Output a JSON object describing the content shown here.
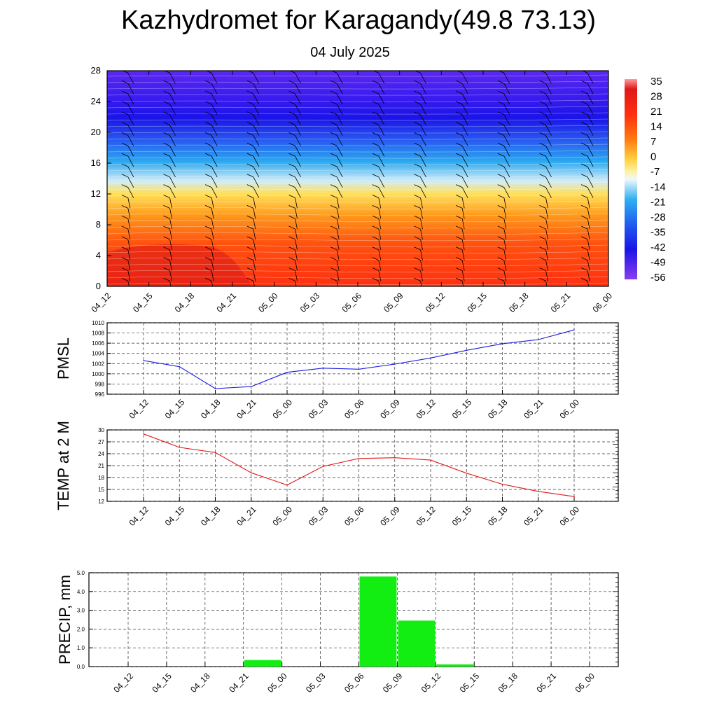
{
  "header": {
    "title": "Kazhydromet for Karagandy(49.8 73.13)",
    "subtitle": "04 July 2025"
  },
  "chart_data": [
    {
      "type": "heatmap",
      "name": "cross-section",
      "x_ticks": [
        "04_12",
        "04_15",
        "04_18",
        "04_21",
        "05_00",
        "05_03",
        "05_06",
        "05_09",
        "05_12",
        "05_15",
        "05_18",
        "05_21",
        "06_00"
      ],
      "y_ticks": [
        0,
        4,
        8,
        12,
        16,
        20,
        24,
        28
      ],
      "ylim": [
        0,
        28
      ],
      "colorbar_labels": [
        "35",
        "28",
        "21",
        "14",
        "7",
        "0",
        "-7",
        "-14",
        "-21",
        "-28",
        "-35",
        "-42",
        "-49",
        "-56"
      ],
      "colors": {
        "top": "#4a1ff0",
        "blue_band": "#1a14e8",
        "cyan": "#2aa8f0",
        "light": "#c8e8f8",
        "yellow": "#ffe060",
        "orange": "#ff9a1a",
        "red": "#ff3a10",
        "deep_red": "#d81818"
      }
    },
    {
      "type": "line",
      "name": "PMSL",
      "ylabel": "PMSL",
      "categories": [
        "04_12",
        "04_15",
        "04_18",
        "04_21",
        "05_00",
        "05_03",
        "05_06",
        "05_09",
        "05_12",
        "05_15",
        "05_18",
        "05_21",
        "06_00"
      ],
      "values": [
        1002.6,
        1001.4,
        997.1,
        997.5,
        1000.3,
        1001.1,
        1000.9,
        1001.9,
        1003.1,
        1004.6,
        1005.9,
        1006.7,
        1008.6
      ],
      "ylim": [
        996,
        1010
      ],
      "y_ticks": [
        996,
        998,
        1000,
        1002,
        1004,
        1006,
        1008,
        1010
      ],
      "color": "#1a1ae0"
    },
    {
      "type": "line",
      "name": "TEMP at 2 M",
      "ylabel": "TEMP at 2 M",
      "categories": [
        "04_12",
        "04_15",
        "04_18",
        "04_21",
        "05_00",
        "05_03",
        "05_06",
        "05_09",
        "05_12",
        "05_15",
        "05_18",
        "05_21",
        "06_00"
      ],
      "values": [
        29.0,
        25.6,
        24.3,
        19.2,
        16.1,
        20.8,
        22.8,
        23.0,
        22.4,
        19.1,
        16.3,
        14.5,
        13.2
      ],
      "ylim": [
        12,
        30
      ],
      "y_ticks": [
        12,
        15,
        18,
        21,
        24,
        27,
        30
      ],
      "color": "#e01818"
    },
    {
      "type": "bar",
      "name": "PRECIP, mm",
      "ylabel": "PRECIP, mm",
      "categories": [
        "04_12",
        "04_15",
        "04_18",
        "04_21",
        "05_00",
        "05_03",
        "05_06",
        "05_09",
        "05_12",
        "05_15",
        "05_18",
        "05_21",
        "06_00"
      ],
      "values": [
        0,
        0,
        0,
        0,
        0.35,
        0,
        0,
        4.8,
        2.45,
        0.12,
        0,
        0,
        0
      ],
      "ylim": [
        0,
        5
      ],
      "y_ticks": [
        "0.0",
        "1.0",
        "2.0",
        "3.0",
        "4.0",
        "5.0"
      ],
      "color": "#12ee12"
    }
  ]
}
